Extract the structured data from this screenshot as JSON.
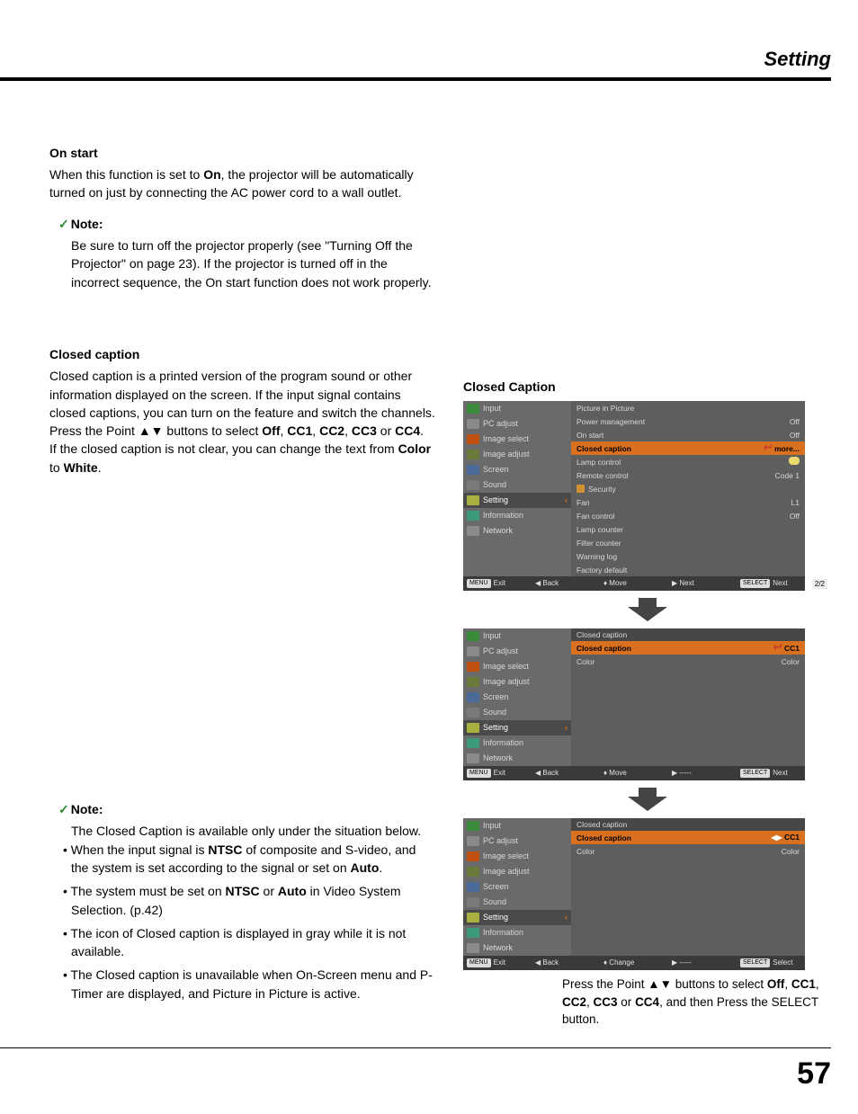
{
  "page": {
    "header": "Setting",
    "number": "57"
  },
  "sections": {
    "onstart": {
      "title": "On start",
      "body_pre": "When this function is set to ",
      "body_bold1": "On",
      "body_post": ", the projector will be automatically turned on just by connecting the AC power cord to a wall outlet.",
      "note_label": "Note:",
      "note_body": "Be sure to turn off the projector properly (see \"Turning Off the Projector\" on page 23). If the projector is turned off in the incorrect sequence, the On start function does not work properly."
    },
    "cc": {
      "title": "Closed caption",
      "body1": "Closed caption is a printed version of the program sound or other information displayed on the screen. If the input signal contains closed captions, you can turn on the feature and switch the channels. Press the Point ▲▼ buttons to select ",
      "body1_bold": "Off",
      "body1_sep1": ", ",
      "body1_b2": "CC1",
      "body1_sep2": ", ",
      "body1_b3": "CC2",
      "body1_sep3": ", ",
      "body1_b4": "CC3",
      "body1_sep4": " or ",
      "body1_b5": "CC4",
      "body1_end": ".",
      "body2_pre": "If the closed caption is not clear, you can change the text from ",
      "body2_b1": "Color",
      "body2_mid": " to ",
      "body2_b2": "White",
      "body2_end": ".",
      "note_label": "Note:",
      "note_intro": "The Closed Caption is available only under the situation below.",
      "note_li1a": "When the input signal is ",
      "note_li1b": "NTSC",
      "note_li1c": " of composite and S-video, and the system is set according to the signal or set on ",
      "note_li1d": "Auto",
      "note_li1e": ".",
      "note_li2a": "The system must be set on ",
      "note_li2b": "NTSC",
      "note_li2c": " or ",
      "note_li2d": "Auto",
      "note_li2e": " in Video System Selection. (p.42)",
      "note_li3": "The icon of Closed caption is displayed in gray while it is not available.",
      "note_li4": "The Closed caption is unavailable when On-Screen menu and P-Timer are displayed, and Picture in Picture is active."
    }
  },
  "right": {
    "title": "Closed Caption",
    "sidebar": [
      {
        "label": "Input",
        "ic": "ic-green"
      },
      {
        "label": "PC adjust",
        "ic": "ic-gray"
      },
      {
        "label": "Image select",
        "ic": "ic-orange"
      },
      {
        "label": "Image adjust",
        "ic": "ic-olive"
      },
      {
        "label": "Screen",
        "ic": "ic-blue"
      },
      {
        "label": "Sound",
        "ic": "ic-sp"
      },
      {
        "label": "Setting",
        "ic": "ic-set"
      },
      {
        "label": "Information",
        "ic": "ic-info"
      },
      {
        "label": "Network",
        "ic": "ic-net"
      }
    ],
    "panel1": {
      "rows": [
        {
          "l": "Picture in Picture",
          "r": ""
        },
        {
          "l": "Power management",
          "r": "Off"
        },
        {
          "l": "On start",
          "r": "Off"
        },
        {
          "l": "Closed caption",
          "r": "more...",
          "hl": true,
          "enter": true
        },
        {
          "l": "Lamp control",
          "r": "",
          "bulb": true
        },
        {
          "l": "Remote control",
          "r": "Code 1"
        },
        {
          "l": "Security",
          "r": "",
          "lock": true
        },
        {
          "l": "Fan",
          "r": "L1"
        },
        {
          "l": "Fan control",
          "r": "Off"
        },
        {
          "l": "Lamp counter",
          "r": ""
        },
        {
          "l": "Filter counter",
          "r": ""
        },
        {
          "l": "Warning log",
          "r": ""
        },
        {
          "l": "Factory default",
          "r": ""
        }
      ],
      "page": "2/2"
    },
    "panel2": {
      "header": "Closed caption",
      "rows": [
        {
          "l": "Closed caption",
          "r": "CC1",
          "hl": true,
          "enter": true
        },
        {
          "l": "Color",
          "r": "Color"
        }
      ]
    },
    "panel3": {
      "header": "Closed caption",
      "rows": [
        {
          "l": "Closed caption",
          "r": "CC1",
          "hl": true,
          "arrows": true
        },
        {
          "l": "Color",
          "r": "Color"
        }
      ]
    },
    "footer1": {
      "exit": "Exit",
      "back": "Back",
      "move": "Move",
      "next": "Next",
      "sel": "Next",
      "exit_key": "MENU",
      "sel_key": "SELECT"
    },
    "footer2": {
      "exit": "Exit",
      "back": "Back",
      "move": "Move",
      "next": "-----",
      "sel": "Next",
      "exit_key": "MENU",
      "sel_key": "SELECT"
    },
    "footer3": {
      "exit": "Exit",
      "back": "Back",
      "move": "Change",
      "next": "-----",
      "sel": "Select",
      "exit_key": "MENU",
      "sel_key": "SELECT"
    },
    "caption_a": "Press the Point ▲▼ buttons to select ",
    "caption_b1": "Off",
    "caption_s1": ", ",
    "caption_b2": "CC1",
    "caption_s2": ", ",
    "caption_b3": "CC2",
    "caption_s3": ", ",
    "caption_b4": "CC3",
    "caption_s4": " or ",
    "caption_b5": "CC4",
    "caption_end": ", and then Press the SELECT button."
  }
}
